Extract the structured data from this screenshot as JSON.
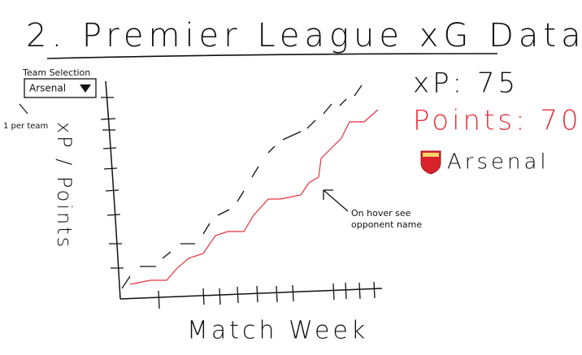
{
  "header": {
    "title": "2. Premier League xG Data"
  },
  "team_selector": {
    "label": "Team Selection",
    "selected": "Arsenal",
    "note": "1 per team"
  },
  "chart": {
    "y_label": "xP / Points",
    "x_label": "Match Week",
    "annotation": "On hover see opponent name"
  },
  "summary": {
    "xp": "xP: 75",
    "points": "Points: 70",
    "team": "Arsenal"
  }
}
